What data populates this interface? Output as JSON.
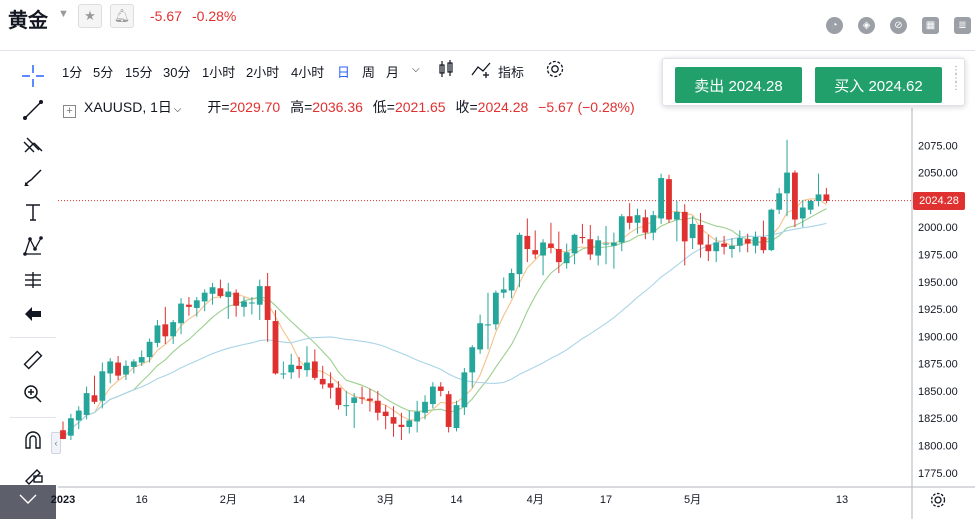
{
  "header": {
    "title": "黄金",
    "change_abs": "-5.67",
    "change_pct": "-0.28%"
  },
  "toolbar": {
    "intervals": [
      "1分",
      "5分",
      "15分",
      "30分",
      "1小时",
      "2小时",
      "4小时",
      "日",
      "周",
      "月"
    ],
    "active_interval": "日",
    "indicators_label": "指标"
  },
  "legend": {
    "symbol": "XAUUSD, 1日",
    "open_label": "开=",
    "open": "2029.70",
    "high_label": "高=",
    "high": "2036.36",
    "low_label": "低=",
    "low": "2021.65",
    "close_label": "收=",
    "close": "2024.28",
    "change": "−5.67 (−0.28%)"
  },
  "trade": {
    "sell_label": "卖出 2024.28",
    "buy_label": "买入 2024.62"
  },
  "colors": {
    "up": "#26a69a",
    "down": "#e03131",
    "accent": "#2962ff",
    "trade": "#22a06b"
  },
  "chart_data": {
    "type": "candlestick",
    "symbol": "XAUUSD",
    "last_price": "2024.28",
    "y_ticks": [
      "2075.00",
      "2050.00",
      "2025.00",
      "2000.00",
      "1975.00",
      "1950.00",
      "1925.00",
      "1900.00",
      "1875.00",
      "1850.00",
      "1825.00",
      "1800.00",
      "1775.00"
    ],
    "x_ticks": [
      "2023",
      "16",
      "2月",
      "14",
      "3月",
      "14",
      "4月",
      "17",
      "5月",
      "13"
    ],
    "ylim": [
      1762,
      2100
    ],
    "candles": [
      [
        1814,
        1822,
        1806,
        1806
      ],
      [
        1809,
        1829,
        1805,
        1825
      ],
      [
        1823,
        1836,
        1815,
        1832
      ],
      [
        1828,
        1854,
        1824,
        1848
      ],
      [
        1846,
        1864,
        1838,
        1840
      ],
      [
        1841,
        1876,
        1834,
        1868
      ],
      [
        1866,
        1880,
        1857,
        1877
      ],
      [
        1876,
        1882,
        1860,
        1864
      ],
      [
        1865,
        1878,
        1860,
        1873
      ],
      [
        1872,
        1879,
        1866,
        1877
      ],
      [
        1876,
        1887,
        1873,
        1881
      ],
      [
        1881,
        1898,
        1876,
        1895
      ],
      [
        1894,
        1915,
        1890,
        1910
      ],
      [
        1911,
        1927,
        1893,
        1900
      ],
      [
        1900,
        1915,
        1893,
        1913
      ],
      [
        1912,
        1935,
        1902,
        1930
      ],
      [
        1929,
        1936,
        1919,
        1927
      ],
      [
        1926,
        1936,
        1918,
        1933
      ],
      [
        1932,
        1943,
        1923,
        1940
      ],
      [
        1939,
        1949,
        1929,
        1945
      ],
      [
        1944,
        1952,
        1935,
        1937
      ],
      [
        1936,
        1949,
        1916,
        1941
      ],
      [
        1940,
        1943,
        1918,
        1928
      ],
      [
        1927,
        1936,
        1918,
        1932
      ],
      [
        1931,
        1936,
        1920,
        1931
      ],
      [
        1929,
        1952,
        1915,
        1946
      ],
      [
        1946,
        1958,
        1895,
        1915
      ],
      [
        1914,
        1924,
        1865,
        1866
      ],
      [
        1866,
        1877,
        1861,
        1866
      ],
      [
        1867,
        1884,
        1861,
        1874
      ],
      [
        1873,
        1881,
        1862,
        1870
      ],
      [
        1869,
        1891,
        1863,
        1876
      ],
      [
        1877,
        1888,
        1860,
        1862
      ],
      [
        1861,
        1873,
        1852,
        1856
      ],
      [
        1857,
        1867,
        1843,
        1853
      ],
      [
        1853,
        1859,
        1833,
        1837
      ],
      [
        1836,
        1850,
        1827,
        1837
      ],
      [
        1839,
        1848,
        1816,
        1844
      ],
      [
        1844,
        1854,
        1838,
        1843
      ],
      [
        1843,
        1852,
        1831,
        1841
      ],
      [
        1841,
        1850,
        1823,
        1830
      ],
      [
        1831,
        1837,
        1815,
        1827
      ],
      [
        1826,
        1836,
        1808,
        1820
      ],
      [
        1819,
        1830,
        1805,
        1817
      ],
      [
        1817,
        1832,
        1811,
        1823
      ],
      [
        1822,
        1841,
        1812,
        1831
      ],
      [
        1830,
        1846,
        1824,
        1840
      ],
      [
        1838,
        1858,
        1834,
        1854
      ],
      [
        1854,
        1858,
        1845,
        1850
      ],
      [
        1847,
        1850,
        1812,
        1817
      ],
      [
        1816,
        1841,
        1813,
        1837
      ],
      [
        1835,
        1871,
        1828,
        1867
      ],
      [
        1867,
        1892,
        1853,
        1890
      ],
      [
        1888,
        1920,
        1884,
        1912
      ],
      [
        1910,
        1940,
        1888,
        1911
      ],
      [
        1911,
        1942,
        1906,
        1940
      ],
      [
        1940,
        1954,
        1935,
        1943
      ],
      [
        1942,
        1962,
        1935,
        1958
      ],
      [
        1957,
        1995,
        1945,
        1993
      ],
      [
        1992,
        2008,
        1968,
        1980
      ],
      [
        1979,
        1997,
        1971,
        1975
      ],
      [
        1974,
        1989,
        1956,
        1986
      ],
      [
        1985,
        2004,
        1976,
        1981
      ],
      [
        1980,
        1996,
        1958,
        1968
      ],
      [
        1967,
        1985,
        1962,
        1977
      ],
      [
        1976,
        1994,
        1966,
        1993
      ],
      [
        1991,
        2003,
        1985,
        1990
      ],
      [
        1989,
        2002,
        1970,
        1975
      ],
      [
        1974,
        1992,
        1965,
        1988
      ],
      [
        1985,
        2001,
        1966,
        1985
      ],
      [
        1983,
        1995,
        1962,
        1986
      ],
      [
        1986,
        2012,
        1978,
        2010
      ],
      [
        2010,
        2022,
        1998,
        2004
      ],
      [
        2004,
        2017,
        1994,
        2011
      ],
      [
        2009,
        2016,
        1989,
        1995
      ],
      [
        1995,
        2015,
        1988,
        2011
      ],
      [
        2008,
        2049,
        2003,
        2045
      ],
      [
        2044,
        2048,
        2004,
        2007
      ],
      [
        2007,
        2024,
        1987,
        2014
      ],
      [
        2014,
        2021,
        1965,
        1987
      ],
      [
        1990,
        2010,
        1980,
        2003
      ],
      [
        2002,
        2013,
        1972,
        1984
      ],
      [
        1984,
        1993,
        1969,
        1978
      ],
      [
        1978,
        1991,
        1968,
        1986
      ],
      [
        1985,
        1992,
        1975,
        1982
      ],
      [
        1980,
        1990,
        1972,
        1983
      ],
      [
        1983,
        1997,
        1977,
        1990
      ],
      [
        1989,
        1994,
        1977,
        1985
      ],
      [
        1983,
        1996,
        1976,
        1991
      ],
      [
        1991,
        2006,
        1976,
        1979
      ],
      [
        1979,
        2017,
        1978,
        2016
      ],
      [
        2016,
        2036,
        2012,
        2031
      ],
      [
        2031,
        2080,
        2010,
        2050
      ],
      [
        2050,
        2052,
        2000,
        2007
      ],
      [
        2008,
        2025,
        2000,
        2018
      ],
      [
        2016,
        2025,
        2012,
        2024
      ],
      [
        2024,
        2049,
        2019,
        2030
      ],
      [
        2030,
        2036,
        2022,
        2024
      ]
    ]
  }
}
